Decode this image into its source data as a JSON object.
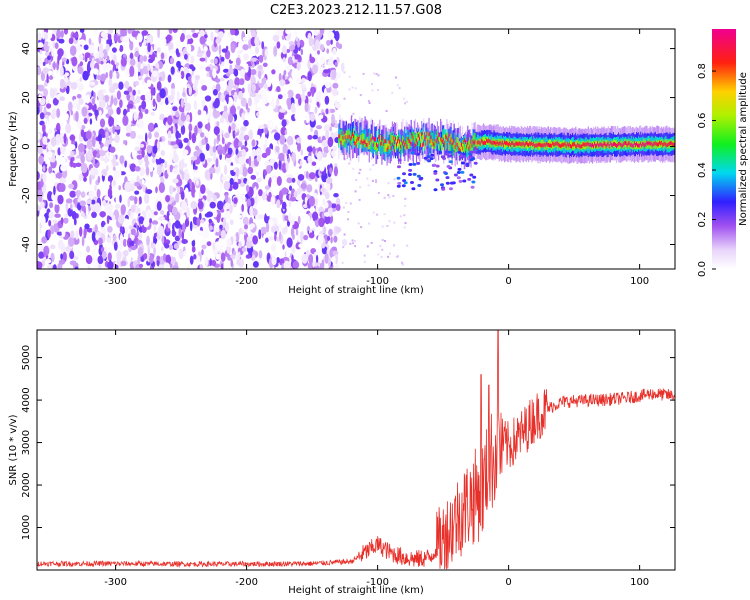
{
  "title": "C2E3.2023.212.11.57.G08",
  "chart_data": [
    {
      "type": "heatmap",
      "xlabel": "Height of straight line (km)",
      "ylabel": "Frequency (Hz)",
      "xlim": [
        -360,
        127
      ],
      "ylim": [
        -50,
        48
      ],
      "xticks": [
        -300,
        -200,
        -100,
        0,
        100
      ],
      "yticks": [
        -40,
        -20,
        0,
        20,
        40
      ],
      "colorbar": {
        "label": "Normalized spectral amplitude",
        "range": [
          0,
          0.97
        ],
        "ticks": [
          0.0,
          0.2,
          0.4,
          0.6,
          0.8
        ],
        "colormap": "rainbow (white, violet, blue, cyan, green, yellow, red, magenta)"
      },
      "regions": [
        {
          "name": "noise",
          "x_range": [
            -360,
            -130
          ],
          "freq_range": [
            -50,
            48
          ],
          "amplitude": 0.2
        },
        {
          "name": "tone",
          "x_range": [
            -130,
            127
          ],
          "freq_center": [
            {
              "x": -130,
              "f": 4
            },
            {
              "x": -110,
              "f": 3
            },
            {
              "x": -95,
              "f": 1
            },
            {
              "x": -80,
              "f": 2
            },
            {
              "x": -60,
              "f": 3
            },
            {
              "x": -45,
              "f": 2
            },
            {
              "x": -35,
              "f": 0
            },
            {
              "x": -20,
              "f": 2
            },
            {
              "x": 0,
              "f": 1
            },
            {
              "x": 50,
              "f": 0.5
            },
            {
              "x": 100,
              "f": 1
            },
            {
              "x": 127,
              "f": 1
            }
          ],
          "amplitude": 0.95
        }
      ]
    },
    {
      "type": "line",
      "xlabel": "Height of straight line (km)",
      "ylabel": "SNR (10 * v/v)",
      "xlim": [
        -360,
        127
      ],
      "ylim": [
        0,
        5650
      ],
      "xticks": [
        -300,
        -200,
        -100,
        0,
        100
      ],
      "yticks": [
        1000,
        2000,
        3000,
        4000,
        5000
      ],
      "color": "#e8302a",
      "series": [
        {
          "name": "SNR",
          "x": [
            -360,
            -300,
            -250,
            -200,
            -150,
            -120,
            -110,
            -100,
            -90,
            -80,
            -70,
            -60,
            -50,
            -40,
            -30,
            -20,
            -15,
            -10,
            -5,
            0,
            10,
            20,
            30,
            40,
            50,
            70,
            90,
            110,
            127
          ],
          "values": [
            150,
            150,
            140,
            140,
            150,
            200,
            400,
            600,
            400,
            300,
            250,
            300,
            700,
            1200,
            1600,
            1900,
            2400,
            2800,
            3000,
            2900,
            3200,
            3600,
            3800,
            3950,
            3980,
            4000,
            4050,
            4150,
            4100
          ]
        }
      ]
    }
  ]
}
